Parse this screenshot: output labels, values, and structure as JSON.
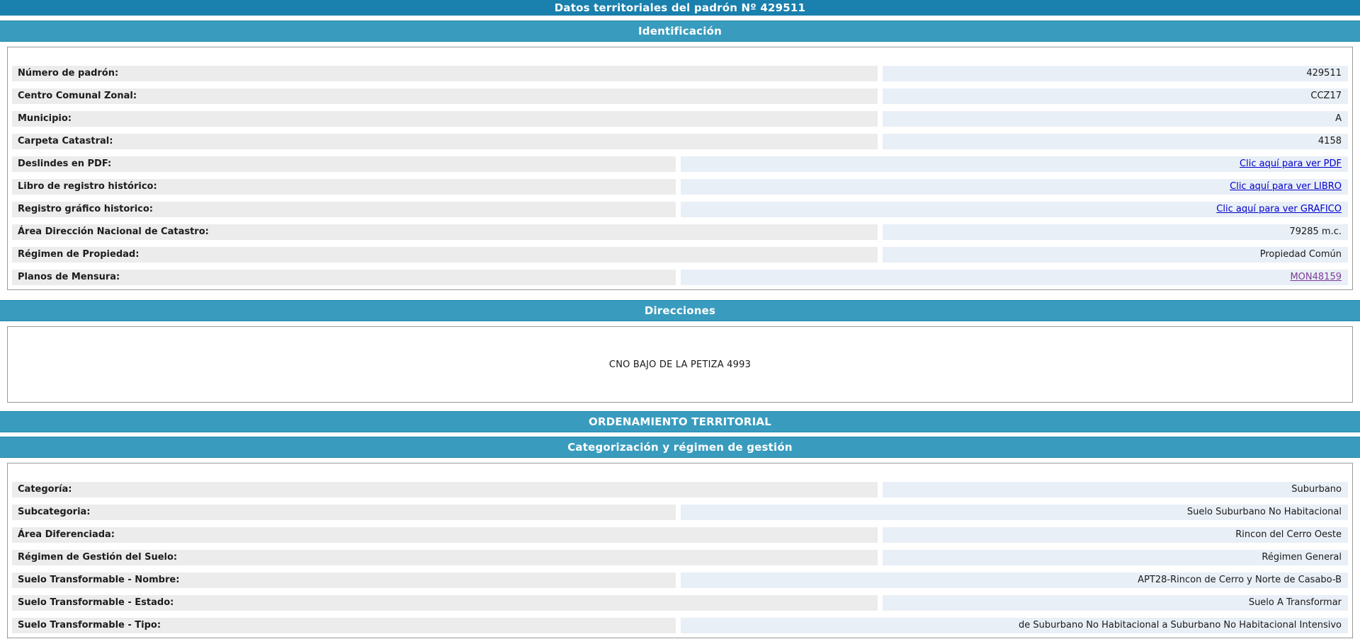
{
  "title_bar": {
    "title": "Datos territoriales del padrón Nº 429511"
  },
  "identification": {
    "header": "Identificación",
    "rows": [
      {
        "label": "Número de padrón:",
        "value": "429511"
      },
      {
        "label": "Centro Comunal Zonal:",
        "value": "CCZ17"
      },
      {
        "label": "Municipio:",
        "value": "A"
      },
      {
        "label": "Carpeta Catastral:",
        "value": "4158"
      },
      {
        "label": "Deslindes en PDF:",
        "value": "Clic aquí para ver PDF"
      },
      {
        "label": "Libro de registro histórico:",
        "value": "Clic aquí para ver LIBRO"
      },
      {
        "label": "Registro gráfico historico:",
        "value": "Clic aquí para ver GRAFICO"
      },
      {
        "label": "Área Dirección Nacional de Catastro:",
        "value": "79285 m.c."
      },
      {
        "label": "Régimen de Propiedad:",
        "value": "Propiedad Común"
      },
      {
        "label": "Planos de Mensura:",
        "value": "MON48159"
      }
    ]
  },
  "direcciones": {
    "header": "Direcciones",
    "address": "CNO BAJO DE LA PETIZA 4993"
  },
  "ordenamiento": {
    "header": "ORDENAMIENTO TERRITORIAL"
  },
  "categorization": {
    "header": "Categorización y régimen de gestión",
    "rows": [
      {
        "label": "Categoría:",
        "value": "Suburbano"
      },
      {
        "label": "Subcategoria:",
        "value": "Suelo Suburbano No Habitacional"
      },
      {
        "label": "Área Diferenciada:",
        "value": "Rincon del Cerro Oeste"
      },
      {
        "label": "Régimen de Gestión del Suelo:",
        "value": "Régimen General"
      },
      {
        "label": "Suelo Transformable - Nombre:",
        "value": "APT28-Rincon de Cerro y Norte de Casabo-B"
      },
      {
        "label": "Suelo Transformable - Estado:",
        "value": "Suelo A Transformar"
      },
      {
        "label": "Suelo Transformable - Tipo:",
        "value": "de Suburbano No Habitacional a Suburbano No Habitacional Intensivo"
      }
    ]
  },
  "colors": {
    "title_bar": "#1a80ad",
    "section_bar": "#399cbe",
    "section_bar_border": "#2287ae",
    "label_cell": "#ececec",
    "value_cell": "#e9eff6",
    "link": "#0000cc",
    "visited_link": "#7d3c98",
    "panel_border": "#999999"
  }
}
